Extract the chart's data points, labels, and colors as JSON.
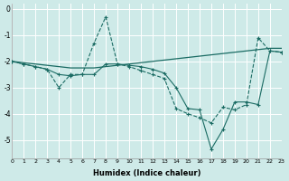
{
  "xlabel": "Humidex (Indice chaleur)",
  "xlim": [
    0,
    23
  ],
  "ylim": [
    -5.7,
    0.2
  ],
  "yticks": [
    0,
    -1,
    -2,
    -3,
    -4,
    -5
  ],
  "xticks": [
    0,
    1,
    2,
    3,
    4,
    5,
    6,
    7,
    8,
    9,
    10,
    11,
    12,
    13,
    14,
    15,
    16,
    17,
    18,
    19,
    20,
    21,
    22,
    23
  ],
  "bg_color": "#ceeae8",
  "line_color": "#1a6b63",
  "grid_color": "#ffffff",
  "line1": {
    "x": [
      0,
      1,
      2,
      3,
      4,
      5,
      6,
      7,
      8,
      9,
      10,
      11,
      12,
      13,
      14,
      15,
      16,
      17,
      18,
      19,
      20,
      21,
      22,
      23
    ],
    "y": [
      -2.0,
      -2.1,
      -2.2,
      -2.3,
      -3.0,
      -2.5,
      -2.5,
      -1.3,
      -0.3,
      -2.1,
      -2.2,
      -2.35,
      -2.5,
      -2.65,
      -3.8,
      -4.0,
      -4.15,
      -4.35,
      -3.75,
      -3.85,
      -3.65,
      -1.1,
      -1.6,
      -1.65
    ],
    "linestyle": "--",
    "marker": "+"
  },
  "line2": {
    "x": [
      0,
      1,
      2,
      3,
      4,
      5,
      6,
      7,
      8,
      9,
      10,
      11,
      12,
      13,
      14,
      15,
      16,
      17,
      18,
      19,
      20,
      21,
      22,
      23
    ],
    "y": [
      -2.0,
      -2.1,
      -2.2,
      -2.3,
      -2.5,
      -2.55,
      -2.5,
      -2.5,
      -2.1,
      -2.1,
      -2.15,
      -2.2,
      -2.3,
      -2.45,
      -3.0,
      -3.8,
      -3.85,
      -5.35,
      -4.6,
      -3.55,
      -3.55,
      -3.65,
      -1.6,
      -1.65
    ],
    "linestyle": "-",
    "marker": "+"
  },
  "line3": {
    "x": [
      0,
      1,
      2,
      3,
      4,
      5,
      6,
      7,
      8,
      9,
      10,
      11,
      12,
      13,
      14,
      15,
      16,
      17,
      18,
      19,
      20,
      21,
      22,
      23
    ],
    "y": [
      -2.0,
      -2.05,
      -2.1,
      -2.15,
      -2.2,
      -2.25,
      -2.25,
      -2.25,
      -2.2,
      -2.15,
      -2.1,
      -2.05,
      -2.0,
      -1.95,
      -1.9,
      -1.85,
      -1.8,
      -1.75,
      -1.7,
      -1.65,
      -1.6,
      -1.55,
      -1.5,
      -1.5
    ],
    "linestyle": "-",
    "marker": null
  }
}
